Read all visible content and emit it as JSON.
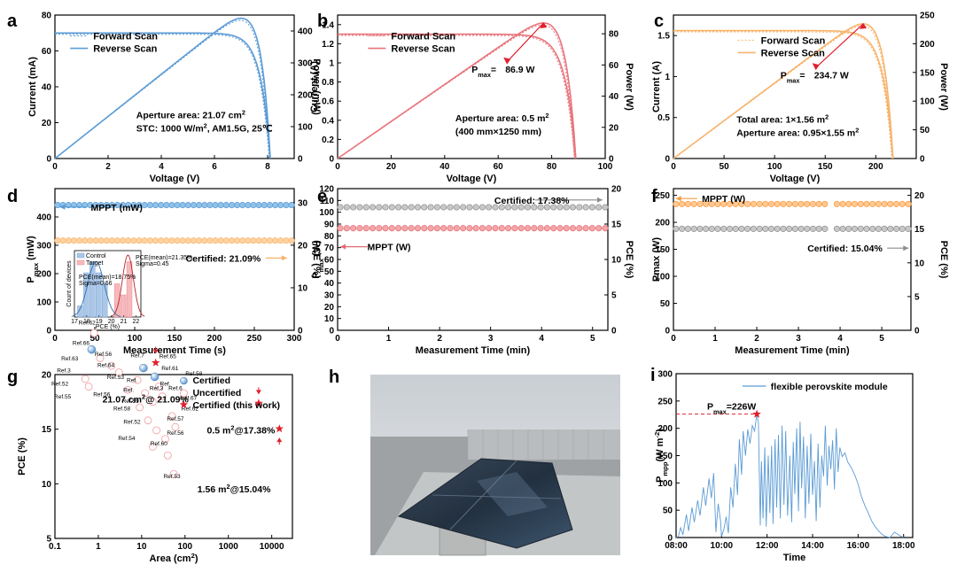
{
  "chart_data": [
    {
      "id": "a",
      "panel_label": "a",
      "type": "line",
      "xlabel": "Voltage (V)",
      "ylabel": "Current (mA)",
      "y2label": "Power (mW)",
      "xlim": [
        0,
        9
      ],
      "ylim": [
        0,
        80
      ],
      "y2lim": [
        0,
        450
      ],
      "xticks": [
        0,
        2,
        4,
        6,
        8
      ],
      "yticks": [
        0,
        20,
        40,
        60,
        80
      ],
      "y2ticks": [
        0,
        100,
        200,
        300,
        400
      ],
      "legend": [
        "Forward Scan",
        "Reverse Scan"
      ],
      "color": "#5b9bd5",
      "voc": 8.1,
      "isc": 70,
      "pmax_at_v": 6.8,
      "pmax": 440,
      "annotations": [
        {
          "parts": [
            "Aperture area: 21.07 cm",
            "2"
          ]
        },
        {
          "parts": [
            "STC: 1000 W/m",
            "2",
            ", AM1.5G, 25℃"
          ]
        }
      ]
    },
    {
      "id": "b",
      "panel_label": "b",
      "type": "line",
      "xlabel": "Voltage (V)",
      "ylabel": "Current (A)",
      "y2label": "Power (W)",
      "xlim": [
        0,
        100
      ],
      "ylim": [
        0,
        1.5
      ],
      "y2lim": [
        0,
        92
      ],
      "xticks": [
        0,
        20,
        40,
        60,
        80,
        100
      ],
      "yticks": [
        0,
        0.2,
        0.4,
        0.6,
        0.8,
        1.0,
        1.2,
        1.4
      ],
      "y2ticks": [
        0,
        20,
        40,
        60,
        80
      ],
      "legend": [
        "Forward Scan",
        "Reverse Scan"
      ],
      "color": "#e8737a",
      "voc": 89,
      "isc": 1.3,
      "pmax_at_v": 73,
      "pmax": 86.9,
      "pmax_label": {
        "prefix": "P",
        "sub": "max",
        "eq": "=",
        "value": "86.9 W"
      },
      "annotations": [
        {
          "parts": [
            "Aperture area: 0.5 m",
            "2"
          ]
        },
        {
          "parts": [
            "(400 mm×1250 mm)"
          ]
        }
      ]
    },
    {
      "id": "c",
      "panel_label": "c",
      "type": "line",
      "xlabel": "Voltage (V)",
      "ylabel": "Current (A)",
      "y2label": "Power (W)",
      "xlim": [
        0,
        240
      ],
      "ylim": [
        0,
        1.75
      ],
      "y2lim": [
        0,
        250
      ],
      "xticks": [
        0,
        50,
        100,
        150,
        200
      ],
      "yticks": [
        0,
        0.5,
        1.0,
        1.5
      ],
      "y2ticks": [
        0,
        50,
        100,
        150,
        200,
        250
      ],
      "legend": [
        "Forward Scan",
        "Reverse Scan"
      ],
      "color": "#f7b36b",
      "voc": 217,
      "isc": 1.56,
      "pmax_at_v": 170,
      "pmax": 234.7,
      "pmax_label": {
        "prefix": "P",
        "sub": "max",
        "eq": "=",
        "value": "234.7 W"
      },
      "annotations": [
        {
          "parts": [
            "Total area: 1×1.56 m",
            "2"
          ]
        },
        {
          "parts": [
            "Aperture area:  0.95×1.55 m",
            "2"
          ]
        }
      ]
    },
    {
      "id": "d",
      "panel_label": "d",
      "type": "scatter",
      "xlabel": "Measurement Time (s)",
      "ylabel": "P",
      "ylabel_sub": "max",
      "ylabel_suffix": " (mW)",
      "y2label": "PCE (%)",
      "xlim": [
        0,
        300
      ],
      "ylim": [
        0,
        500
      ],
      "y2lim": [
        0,
        33.3
      ],
      "xticks": [
        0,
        50,
        100,
        150,
        200,
        250,
        300
      ],
      "yticks": [
        0,
        100,
        200,
        300,
        400
      ],
      "y2ticks": [
        0,
        10,
        20,
        30
      ],
      "series": [
        {
          "name": "MPPT (mW)",
          "value": 442,
          "axis": "left",
          "color": "#8fc1e9",
          "edge": "#5b9bd5"
        },
        {
          "name": "Certified: 21.09%",
          "value": 21.09,
          "axis": "right",
          "color": "#ffd2a3",
          "edge": "#f7b36b"
        }
      ],
      "inset": {
        "xlabel": "PCE (%)",
        "ylabel": "Count of devices",
        "xticks": [
          17,
          18,
          19,
          20,
          21,
          22
        ],
        "legend": [
          "Control",
          "Target"
        ],
        "control_bins": [
          [
            17.5,
            1
          ],
          [
            18,
            4
          ],
          [
            18.5,
            5
          ],
          [
            19,
            4
          ],
          [
            19.5,
            3
          ]
        ],
        "target_bins": [
          [
            20.5,
            3
          ],
          [
            21,
            2
          ],
          [
            21.5,
            5
          ]
        ],
        "control_stats": [
          "PCE(mean)=18.75%",
          "Sigma=0.66"
        ],
        "target_stats": [
          "PCE(mean)=21.35%",
          "Sigma=0.45"
        ]
      }
    },
    {
      "id": "e",
      "panel_label": "e",
      "type": "scatter",
      "xlabel": "Measurement Time (min)",
      "ylabel": "P",
      "ylabel_sub": "max",
      "ylabel_suffix": " (W)",
      "y2label": "PCE (%)",
      "xlim": [
        0,
        5.3
      ],
      "ylim": [
        0,
        120
      ],
      "y2lim": [
        0,
        20
      ],
      "xticks": [
        0,
        1,
        2,
        3,
        4,
        5
      ],
      "yticks": [
        0,
        10,
        20,
        30,
        40,
        50,
        60,
        70,
        80,
        90,
        100,
        110,
        120
      ],
      "y2ticks": [
        0,
        5,
        10,
        15,
        20
      ],
      "series": [
        {
          "name": "Certified: 17.38%",
          "value": 17.38,
          "axis": "right",
          "color": "#c8c8c8",
          "edge": "#8c8c8c"
        },
        {
          "name": "MPPT (W)",
          "value": 86.5,
          "axis": "left",
          "color": "#f4a6a9",
          "edge": "#e06b72"
        }
      ]
    },
    {
      "id": "f",
      "panel_label": "f",
      "type": "scatter",
      "xlabel": "Measurement Time (min)",
      "ylabel": "Pmax (W)",
      "y2label": "PCE (%)",
      "xlim": [
        0,
        5.7
      ],
      "ylim": [
        0,
        262.5
      ],
      "y2lim": [
        0,
        21
      ],
      "xticks": [
        0,
        1,
        2,
        3,
        4,
        5
      ],
      "yticks": [
        0,
        50,
        100,
        150,
        200,
        250
      ],
      "y2ticks": [
        0,
        5,
        10,
        15,
        20
      ],
      "series": [
        {
          "name": "MPPT (W)",
          "value": 234,
          "axis": "left",
          "color": "#ffc890",
          "edge": "#f39b43"
        },
        {
          "name": "Certified: 15.04%",
          "value": 15.04,
          "axis": "right",
          "color": "#c8c8c8",
          "edge": "#8c8c8c"
        }
      ]
    },
    {
      "id": "g",
      "panel_label": "g",
      "type": "scatter",
      "xlabel": "Area (cm",
      "xlabel_sup": "2",
      "xlabel_suffix": ")",
      "ylabel": "PCE (%)",
      "xscale": "log",
      "xlim": [
        0.1,
        30000
      ],
      "ylim": [
        5,
        20
      ],
      "xticks": [
        0.1,
        1,
        10,
        100,
        1000,
        10000
      ],
      "xticklabels": [
        "0.1",
        "1",
        "10",
        "100",
        "1000",
        "10000"
      ],
      "yticks": [
        5,
        10,
        15,
        20
      ],
      "legend": [
        "Certified",
        "Uncertified",
        "Certified (this work)"
      ],
      "certified": [
        [
          0.7,
          22.3
        ],
        [
          11,
          20.6
        ],
        [
          20,
          19.8
        ]
      ],
      "uncertified": [
        [
          0.8,
          23.8
        ],
        [
          1.1,
          21.5
        ],
        [
          2.0,
          20.8
        ],
        [
          3,
          20.2
        ],
        [
          0.5,
          19.6
        ],
        [
          0.6,
          18.9
        ],
        [
          4.8,
          18.6
        ],
        [
          8,
          19.5
        ],
        [
          12,
          18.3
        ],
        [
          18,
          17.5
        ],
        [
          25,
          18.9
        ],
        [
          30,
          18.0
        ],
        [
          9,
          17.0
        ],
        [
          14,
          15.8
        ],
        [
          22,
          14.9
        ],
        [
          35,
          14.1
        ],
        [
          50,
          16.2
        ],
        [
          60,
          15.2
        ],
        [
          40,
          12.6
        ],
        [
          55,
          10.9
        ],
        [
          18,
          13.4
        ]
      ],
      "refs": [
        {
          "t": "Ref.62",
          "x": 0.55,
          "y": 24.6
        },
        {
          "t": "Ref.66",
          "x": 0.4,
          "y": 22.7
        },
        {
          "t": "Ref.63",
          "x": 0.22,
          "y": 21.3
        },
        {
          "t": "Ref.56",
          "x": 1.3,
          "y": 21.7
        },
        {
          "t": "Ref.3",
          "x": 0.16,
          "y": 20.2
        },
        {
          "t": "Ref.64",
          "x": 1.5,
          "y": 20.7
        },
        {
          "t": "Ref.53",
          "x": 2.5,
          "y": 19.6
        },
        {
          "t": "Ref.52",
          "x": 0.13,
          "y": 19.0
        },
        {
          "t": "Ref.55",
          "x": 0.15,
          "y": 17.8
        },
        {
          "t": "Ref.56",
          "x": 1.2,
          "y": 18.0
        },
        {
          "t": "Ref.7",
          "x": 8,
          "y": 21.6
        },
        {
          "t": "Ref.65",
          "x": 40,
          "y": 21.5
        },
        {
          "t": "Ref.61",
          "x": 45,
          "y": 20.4
        },
        {
          "t": "Ref.58",
          "x": 160,
          "y": 19.9
        },
        {
          "t": "Ref.",
          "x": 6,
          "y": 19.3
        },
        {
          "t": "Ref.",
          "x": 5,
          "y": 18.4
        },
        {
          "t": "Ref.59",
          "x": 5.5,
          "y": 17.4
        },
        {
          "t": "Ref.58",
          "x": 3.5,
          "y": 16.7
        },
        {
          "t": "Ref.",
          "x": 35,
          "y": 19.0
        },
        {
          "t": "Ref.3",
          "x": 22,
          "y": 18.6
        },
        {
          "t": "Ref.6",
          "x": 60,
          "y": 18.6
        },
        {
          "t": "Ref.67",
          "x": 120,
          "y": 17.7
        },
        {
          "t": "Ref.62",
          "x": 130,
          "y": 16.7
        },
        {
          "t": "Ref.57",
          "x": 60,
          "y": 15.8
        },
        {
          "t": "Ref.56",
          "x": 60,
          "y": 14.5
        },
        {
          "t": "Ref.52",
          "x": 6,
          "y": 15.5
        },
        {
          "t": "Ref.54",
          "x": 4.5,
          "y": 14.0
        },
        {
          "t": "Ref.60",
          "x": 25,
          "y": 13.5
        },
        {
          "t": "Ref.53",
          "x": 50,
          "y": 10.5
        }
      ],
      "this_work": [
        {
          "area": 21.07,
          "pce": 21.09,
          "label": {
            "pre": "21.07 cm",
            "sup": "2",
            "post": "@ 21.09%"
          }
        },
        {
          "area": 5000,
          "pce": 17.38,
          "label": {
            "pre": "0.5 m",
            "sup": "2",
            "post": "@17.38%"
          }
        },
        {
          "area": 15000,
          "pce": 15.04,
          "label": {
            "pre": "1.56 m",
            "sup": "2",
            "post": "@15.04%"
          }
        }
      ]
    },
    {
      "id": "h",
      "panel_label": "h",
      "type": "photo",
      "description_free": true
    },
    {
      "id": "i",
      "panel_label": "i",
      "type": "line",
      "xlabel": "Time",
      "ylabel": "P",
      "ylabel_sub": "mpp",
      "ylabel_suffix": "(W m",
      "ylabel_sup": "-2",
      "ylabel_end": ")",
      "xlim": [
        8,
        18.4
      ],
      "ylim": [
        0,
        300
      ],
      "xticks": [
        8,
        10,
        12,
        14,
        16,
        18
      ],
      "xticklabels": [
        "08:00",
        "10:00",
        "12:00",
        "14:00",
        "16:00",
        "18:00"
      ],
      "yticks": [
        0,
        50,
        100,
        150,
        200,
        250,
        300
      ],
      "legend": [
        "flexible perovskite module"
      ],
      "color": "#5b9bd5",
      "pmax_label": {
        "prefix": "P",
        "sub": "max",
        "eq": "=",
        "value": "226W"
      },
      "peak": [
        11.55,
        226
      ],
      "points": [
        [
          8.0,
          0
        ],
        [
          8.1,
          2
        ],
        [
          8.2,
          18
        ],
        [
          8.3,
          5
        ],
        [
          8.45,
          42
        ],
        [
          8.55,
          12
        ],
        [
          8.7,
          55
        ],
        [
          8.8,
          28
        ],
        [
          8.95,
          68
        ],
        [
          9.05,
          40
        ],
        [
          9.2,
          92
        ],
        [
          9.3,
          58
        ],
        [
          9.45,
          108
        ],
        [
          9.55,
          72
        ],
        [
          9.65,
          118
        ],
        [
          9.75,
          10
        ],
        [
          9.85,
          62
        ],
        [
          9.95,
          32
        ],
        [
          10.0,
          2
        ],
        [
          10.1,
          15
        ],
        [
          10.2,
          38
        ],
        [
          10.3,
          8
        ],
        [
          10.4,
          92
        ],
        [
          10.5,
          55
        ],
        [
          10.6,
          135
        ],
        [
          10.7,
          78
        ],
        [
          10.78,
          180
        ],
        [
          10.88,
          115
        ],
        [
          10.95,
          195
        ],
        [
          11.05,
          150
        ],
        [
          11.15,
          198
        ],
        [
          11.25,
          172
        ],
        [
          11.35,
          205
        ],
        [
          11.45,
          195
        ],
        [
          11.55,
          226
        ],
        [
          11.62,
          210
        ],
        [
          11.7,
          22
        ],
        [
          11.75,
          140
        ],
        [
          11.82,
          35
        ],
        [
          11.9,
          165
        ],
        [
          11.96,
          20
        ],
        [
          12.05,
          150
        ],
        [
          12.12,
          45
        ],
        [
          12.2,
          168
        ],
        [
          12.26,
          25
        ],
        [
          12.35,
          180
        ],
        [
          12.42,
          55
        ],
        [
          12.5,
          188
        ],
        [
          12.58,
          35
        ],
        [
          12.66,
          205
        ],
        [
          12.74,
          60
        ],
        [
          12.82,
          195
        ],
        [
          12.9,
          40
        ],
        [
          13.0,
          150
        ],
        [
          13.08,
          28
        ],
        [
          13.15,
          175
        ],
        [
          13.22,
          80
        ],
        [
          13.3,
          200
        ],
        [
          13.38,
          48
        ],
        [
          13.45,
          212
        ],
        [
          13.52,
          90
        ],
        [
          13.6,
          185
        ],
        [
          13.68,
          35
        ],
        [
          13.76,
          168
        ],
        [
          13.84,
          62
        ],
        [
          13.92,
          190
        ],
        [
          14.0,
          78
        ],
        [
          14.08,
          140
        ],
        [
          14.16,
          30
        ],
        [
          14.24,
          172
        ],
        [
          14.32,
          55
        ],
        [
          14.4,
          150
        ],
        [
          14.48,
          112
        ],
        [
          14.56,
          205
        ],
        [
          14.64,
          95
        ],
        [
          14.72,
          168
        ],
        [
          14.8,
          125
        ],
        [
          14.88,
          178
        ],
        [
          14.96,
          88
        ],
        [
          15.04,
          200
        ],
        [
          15.12,
          120
        ],
        [
          15.2,
          165
        ],
        [
          15.3,
          148
        ],
        [
          15.42,
          155
        ],
        [
          15.55,
          138
        ],
        [
          15.7,
          128
        ],
        [
          15.85,
          115
        ],
        [
          16.0,
          98
        ],
        [
          16.15,
          75
        ],
        [
          16.3,
          58
        ],
        [
          16.45,
          45
        ],
        [
          16.6,
          30
        ],
        [
          16.75,
          20
        ],
        [
          16.9,
          12
        ],
        [
          17.05,
          6
        ],
        [
          17.2,
          2
        ],
        [
          17.4,
          0
        ],
        [
          17.6,
          10
        ],
        [
          17.8,
          4
        ],
        [
          18.0,
          0
        ]
      ]
    }
  ]
}
